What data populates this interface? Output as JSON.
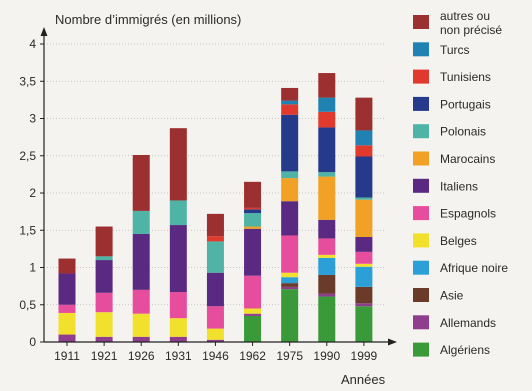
{
  "chart_data": {
    "type": "bar",
    "stacked": true,
    "title": "",
    "ylabel": "Nombre d’immigrés (en millions)",
    "xlabel": "Années",
    "ylim": [
      0,
      4
    ],
    "yticks": [
      "0",
      "0,5",
      "1",
      "1,5",
      "2",
      "2,5",
      "3",
      "3,5",
      "4"
    ],
    "grid": "horizontal",
    "legend_position": "right",
    "categories": [
      "1911",
      "1921",
      "1926",
      "1931",
      "1946",
      "1962",
      "1975",
      "1990",
      "1999"
    ],
    "series": [
      {
        "name": "Algériens",
        "color": "#3a9a3a",
        "values": [
          0,
          0,
          0,
          0,
          0,
          0.35,
          0.71,
          0.61,
          0.48
        ]
      },
      {
        "name": "Allemands",
        "color": "#8e3e8c",
        "values": [
          0.1,
          0.07,
          0.07,
          0.07,
          0.03,
          0.03,
          0.03,
          0.04,
          0.04
        ]
      },
      {
        "name": "Asie",
        "color": "#6b3b2a",
        "values": [
          0,
          0,
          0,
          0,
          0,
          0,
          0.05,
          0.25,
          0.22
        ]
      },
      {
        "name": "Afrique noire",
        "color": "#2b9fd6",
        "values": [
          0,
          0,
          0,
          0,
          0,
          0,
          0.08,
          0.23,
          0.27
        ]
      },
      {
        "name": "Belges",
        "color": "#f2e12c",
        "values": [
          0.29,
          0.33,
          0.31,
          0.25,
          0.15,
          0.07,
          0.06,
          0.04,
          0.04
        ]
      },
      {
        "name": "Espagnols",
        "color": "#e64d9c",
        "values": [
          0.11,
          0.26,
          0.32,
          0.35,
          0.3,
          0.44,
          0.5,
          0.22,
          0.16
        ]
      },
      {
        "name": "Italiens",
        "color": "#5a2a82",
        "values": [
          0.42,
          0.44,
          0.75,
          0.9,
          0.45,
          0.63,
          0.46,
          0.25,
          0.2
        ]
      },
      {
        "name": "Marocains",
        "color": "#f0a126",
        "values": [
          0,
          0,
          0,
          0,
          0,
          0.03,
          0.31,
          0.58,
          0.5
        ]
      },
      {
        "name": "Polonais",
        "color": "#4fb4a6",
        "values": [
          0,
          0.05,
          0.31,
          0.33,
          0.42,
          0.18,
          0.09,
          0.06,
          0.03
        ]
      },
      {
        "name": "Portugais",
        "color": "#253a8a",
        "values": [
          0,
          0,
          0,
          0,
          0,
          0.05,
          0.76,
          0.6,
          0.55
        ]
      },
      {
        "name": "Tunisiens",
        "color": "#e03a2e",
        "values": [
          0,
          0,
          0,
          0,
          0.07,
          0.02,
          0.14,
          0.21,
          0.15
        ]
      },
      {
        "name": "Turcs",
        "color": "#1f82b3",
        "values": [
          0,
          0,
          0,
          0,
          0,
          0,
          0.05,
          0.19,
          0.2
        ]
      },
      {
        "name": "autres ou non précisé",
        "label_lines": [
          "autres ou",
          "non précisé"
        ],
        "color": "#9c2f2f",
        "values": [
          0.2,
          0.4,
          0.75,
          0.97,
          0.3,
          0.35,
          0.17,
          0.33,
          0.44
        ]
      }
    ]
  }
}
